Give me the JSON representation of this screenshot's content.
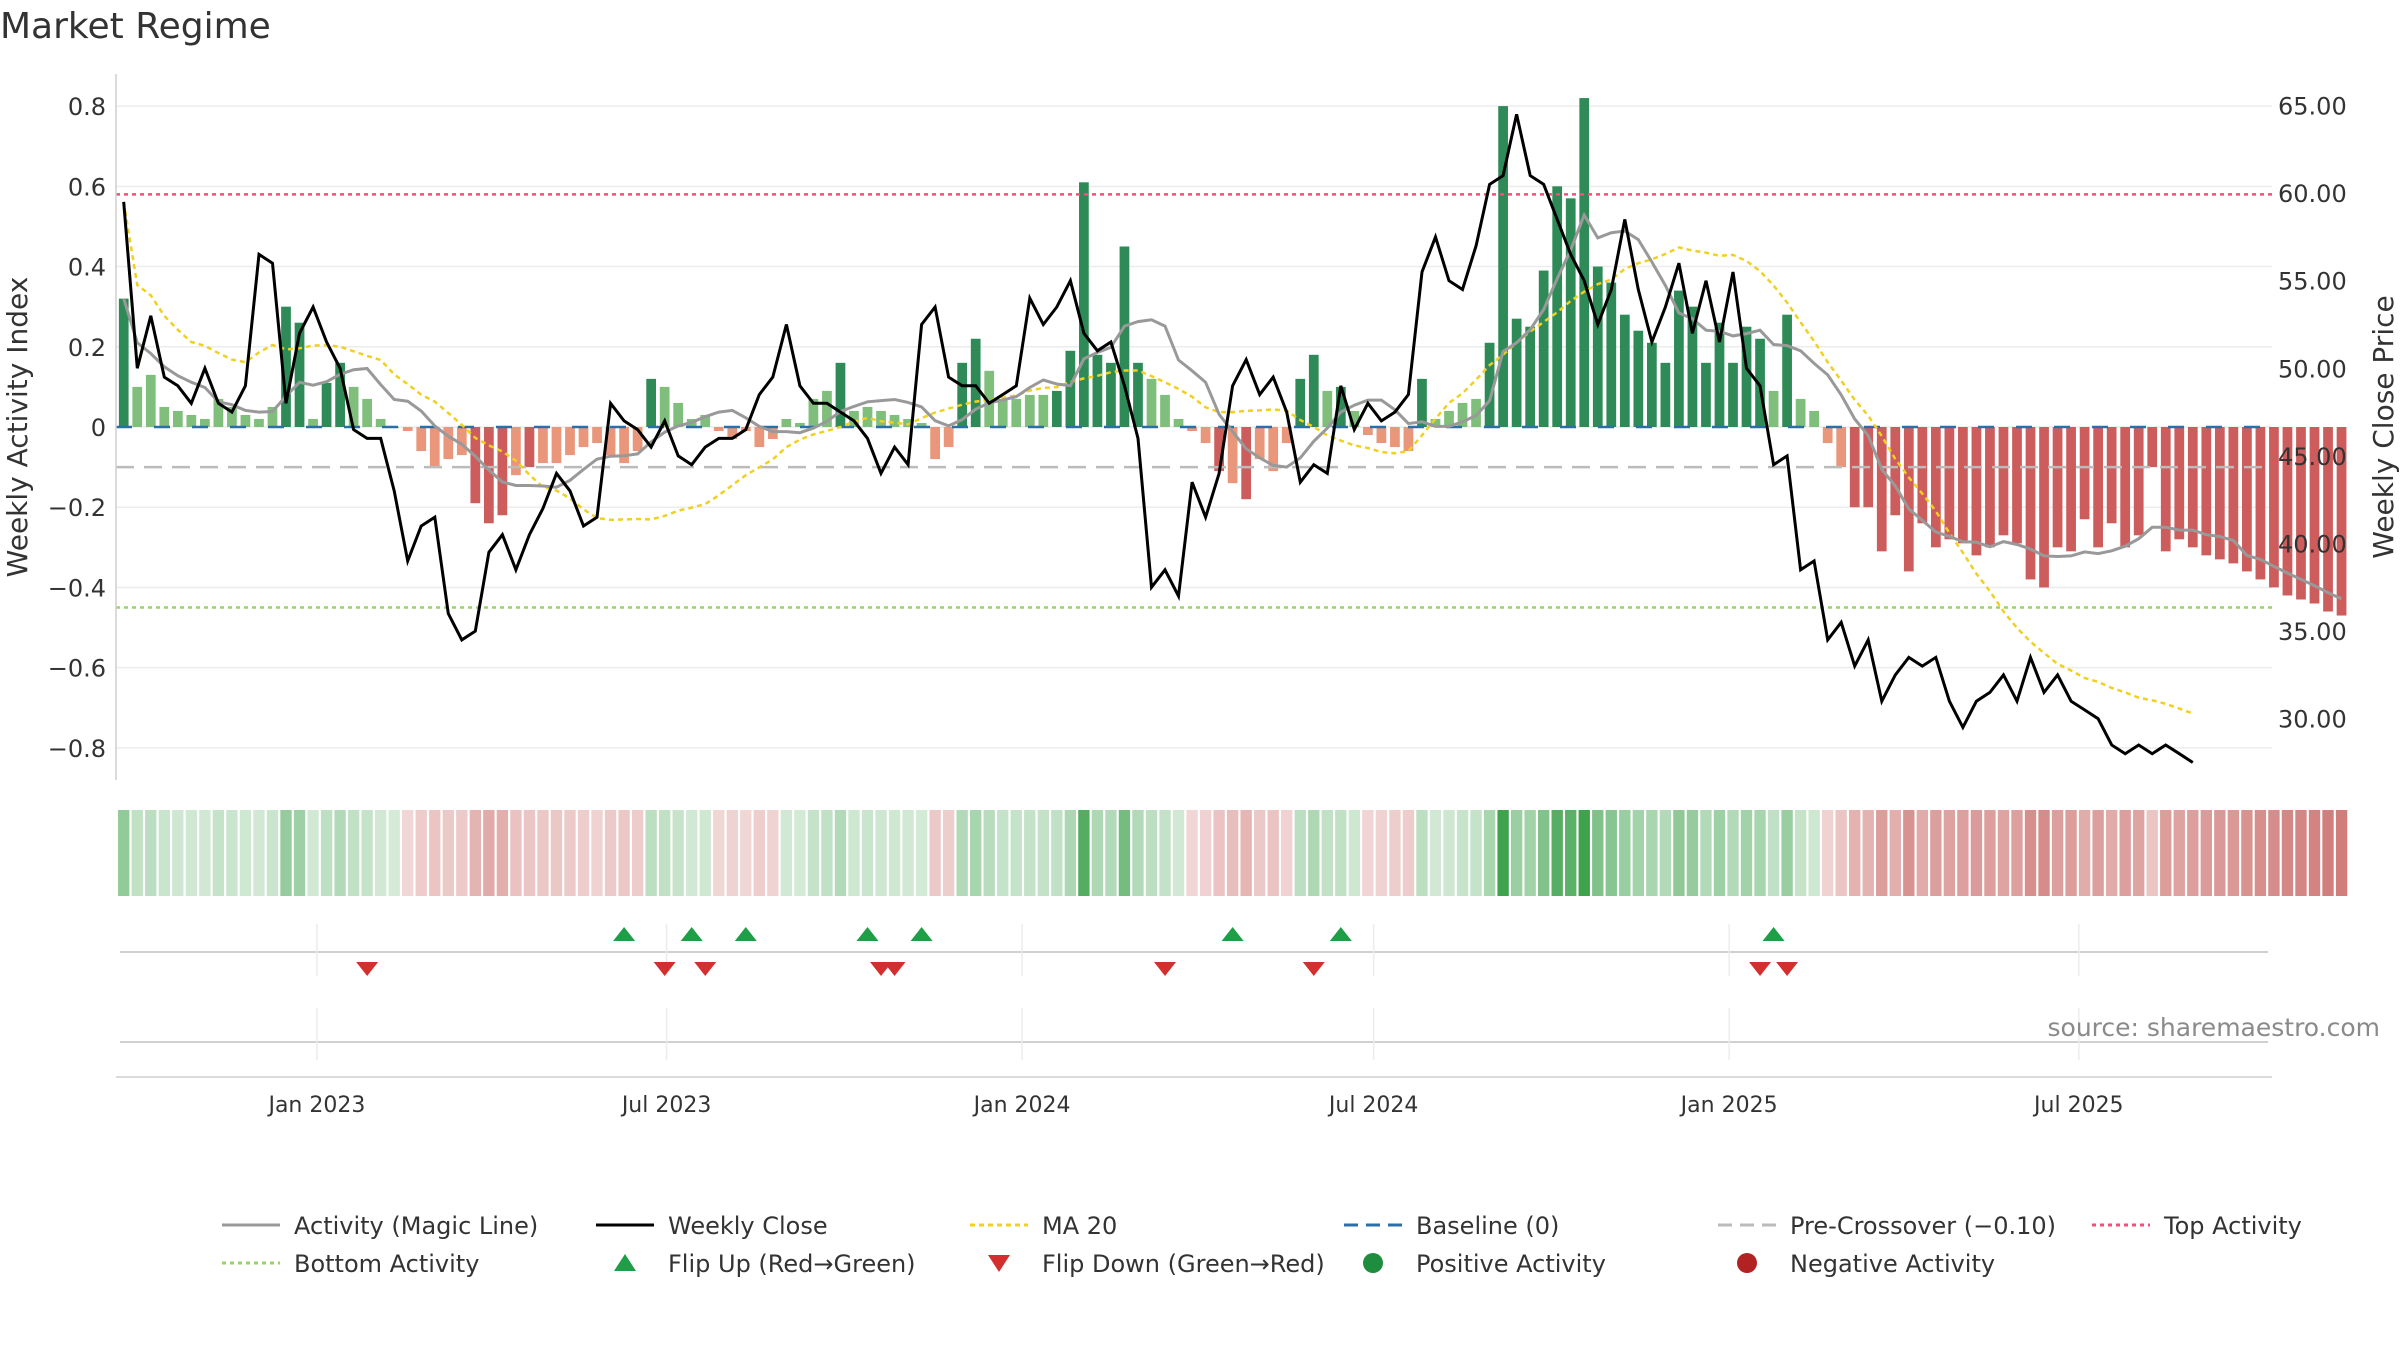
{
  "title": "Market Regime",
  "source": "source: sharemaestro.com",
  "colors": {
    "strong_green": "#2e8b57",
    "light_green": "#7fbf7b",
    "strong_red": "#cd5c5c",
    "light_red": "#e9967a",
    "close": "#000000",
    "magic": "#999999",
    "ma20": "#f0d020",
    "baseline": "#2b6fa8",
    "precross": "#bbbbbb",
    "top_line": "#e8557a",
    "bottom_line": "#9bd36a",
    "flip_up": "#1e9e46",
    "flip_down": "#d32f2f",
    "strip_green": "#3fa34d",
    "strip_red": "#c0504d"
  },
  "chart_data": {
    "type": "bar",
    "title": "Market Regime",
    "ylabel": "Weekly Activity Index",
    "y2label": "Weekly Close Price",
    "ylim": [
      -0.88,
      0.88
    ],
    "y2lim": [
      26.5,
      66.8
    ],
    "xlim": [
      "2022-09-19",
      "2025-10-09"
    ],
    "yticks": [
      "0.8",
      "0.6",
      "0.4",
      "0.2",
      "0",
      "−0.2",
      "−0.4",
      "−0.6",
      "−0.8"
    ],
    "ytick_values": [
      0.8,
      0.6,
      0.4,
      0.2,
      0,
      -0.2,
      -0.4,
      -0.6,
      -0.8
    ],
    "y2ticks": [
      "65.00",
      "60.00",
      "55.00",
      "50.00",
      "45.00",
      "40.00",
      "35.00",
      "30.00"
    ],
    "y2tick_values": [
      65,
      60,
      55,
      50,
      45,
      40,
      35,
      30
    ],
    "xticks": [
      "Jan 2023",
      "Jul 2023",
      "Jan 2024",
      "Jul 2024",
      "Jan 2025",
      "Jul 2025"
    ],
    "xtick_dates": [
      "2023-01-01",
      "2023-07-01",
      "2024-01-01",
      "2024-07-01",
      "2025-01-01",
      "2025-07-01"
    ],
    "reference_lines": {
      "top_activity": 0.58,
      "bottom_activity": -0.45,
      "baseline": 0,
      "pre_crossover": -0.1
    },
    "weeks": {
      "start": "2022-09-23",
      "activity": [
        0.32,
        0.1,
        0.13,
        0.05,
        0.04,
        0.03,
        0.02,
        0.07,
        0.05,
        0.03,
        0.02,
        0.05,
        0.3,
        0.26,
        0.02,
        0.11,
        0.16,
        0.1,
        0.07,
        0.02,
        0.0,
        -0.01,
        -0.06,
        -0.1,
        -0.08,
        -0.07,
        -0.19,
        -0.24,
        -0.22,
        -0.12,
        -0.1,
        -0.09,
        -0.09,
        -0.07,
        -0.05,
        -0.04,
        -0.07,
        -0.09,
        -0.06,
        0.12,
        0.1,
        0.06,
        0.02,
        0.03,
        -0.01,
        -0.03,
        -0.01,
        -0.05,
        -0.03,
        0.02,
        0.01,
        0.07,
        0.09,
        0.16,
        0.04,
        0.05,
        0.04,
        0.03,
        0.02,
        0.01,
        -0.08,
        -0.05,
        0.16,
        0.22,
        0.14,
        0.07,
        0.07,
        0.08,
        0.08,
        0.09,
        0.19,
        0.61,
        0.18,
        0.16,
        0.45,
        0.16,
        0.12,
        0.08,
        0.02,
        -0.01,
        -0.04,
        -0.11,
        -0.14,
        -0.18,
        -0.08,
        -0.11,
        -0.04,
        0.12,
        0.18,
        0.09,
        0.1,
        0.04,
        -0.02,
        -0.04,
        -0.05,
        -0.06,
        0.12,
        0.02,
        0.04,
        0.06,
        0.07,
        0.21,
        0.8,
        0.27,
        0.25,
        0.39,
        0.6,
        0.57,
        0.82,
        0.4,
        0.36,
        0.28,
        0.24,
        0.21,
        0.16,
        0.34,
        0.3,
        0.16,
        0.26,
        0.16,
        0.25,
        0.22,
        0.09,
        0.28,
        0.07,
        0.04,
        -0.04,
        -0.1,
        -0.2,
        -0.2,
        -0.31,
        -0.22,
        -0.36,
        -0.24,
        -0.3,
        -0.28,
        -0.29,
        -0.32,
        -0.3,
        -0.27,
        -0.29,
        -0.38,
        -0.4,
        -0.3,
        -0.31,
        -0.23,
        -0.3,
        -0.24,
        -0.3,
        -0.27,
        -0.1,
        -0.31,
        -0.28,
        -0.3,
        -0.32,
        -0.33,
        -0.34,
        -0.36,
        -0.38,
        -0.4,
        -0.42,
        -0.43,
        -0.44,
        -0.46,
        -0.47
      ],
      "close": [
        59.5,
        50.0,
        53.0,
        49.5,
        49.0,
        48.0,
        50.0,
        48.0,
        47.5,
        49.0,
        56.5,
        56.0,
        48.0,
        52.0,
        53.5,
        51.5,
        50.0,
        46.5,
        46.0,
        46.0,
        43.0,
        39.0,
        41.0,
        41.5,
        36.0,
        34.5,
        35.0,
        39.5,
        40.5,
        38.5,
        40.5,
        42.0,
        44.0,
        43.0,
        41.0,
        41.5,
        48.0,
        47.0,
        46.5,
        45.5,
        47.0,
        45.0,
        44.5,
        45.5,
        46.0,
        46.0,
        46.5,
        48.5,
        49.5,
        52.5,
        49.0,
        48.0,
        48.0,
        47.5,
        47.0,
        46.0,
        44.0,
        45.5,
        44.5,
        52.5,
        53.5,
        49.5,
        49.0,
        49.0,
        48.0,
        48.5,
        49.0,
        54.0,
        52.5,
        53.5,
        55.0,
        52.0,
        51.0,
        51.5,
        49.0,
        46.0,
        37.5,
        38.5,
        37.0,
        43.5,
        41.5,
        44.0,
        49.0,
        50.5,
        48.5,
        49.5,
        47.5,
        43.5,
        44.5,
        44.0,
        49.0,
        46.5,
        48.0,
        47.0,
        47.5,
        48.5,
        55.5,
        57.5,
        55.0,
        54.5,
        57.0,
        60.5,
        61.0,
        64.5,
        61.0,
        60.5,
        58.5,
        56.5,
        55.0,
        52.5,
        54.5,
        58.5,
        54.5,
        51.5,
        53.5,
        56.0,
        52.0,
        55.0,
        51.5,
        55.5,
        50.0,
        49.0,
        44.5,
        45.0,
        38.5,
        39.0,
        34.5,
        35.5,
        33.0,
        34.5,
        31.0,
        32.5,
        33.5,
        33.0,
        33.5,
        31.0,
        29.5,
        31.0,
        31.5,
        32.5,
        31.0,
        33.5,
        31.5,
        32.5,
        31.0,
        30.5,
        30.0,
        28.5,
        28.0,
        28.5,
        28.0,
        28.5,
        28.0,
        27.5
      ]
    },
    "flips": {
      "up": [
        "2023-06-09",
        "2023-07-14",
        "2023-08-11",
        "2023-10-13",
        "2023-11-10",
        "2024-04-19",
        "2024-06-14",
        "2025-01-24"
      ],
      "down": [
        "2023-01-27",
        "2023-06-30",
        "2023-07-21",
        "2023-10-20",
        "2023-10-27",
        "2024-03-15",
        "2024-05-31",
        "2025-01-17",
        "2025-01-31"
      ]
    },
    "series": [
      {
        "name": "Activity (Magic Line)"
      },
      {
        "name": "Weekly Close"
      },
      {
        "name": "MA 20"
      },
      {
        "name": "Baseline (0)"
      },
      {
        "name": "Pre-Crossover (−0.10)"
      },
      {
        "name": "Top Activity"
      },
      {
        "name": "Bottom Activity"
      },
      {
        "name": "Flip Up (Red→Green)"
      },
      {
        "name": "Flip Down (Green→Red)"
      },
      {
        "name": "Positive Activity"
      },
      {
        "name": "Negative Activity"
      }
    ],
    "grid": true,
    "legend_position": "bottom"
  },
  "legend": [
    {
      "label": "Activity (Magic Line)",
      "kind": "line",
      "color": "#999999",
      "dash": "",
      "col": 0,
      "row": 0
    },
    {
      "label": "Weekly Close",
      "kind": "line",
      "color": "#000000",
      "dash": "",
      "col": 1,
      "row": 0
    },
    {
      "label": "MA 20",
      "kind": "line",
      "color": "#f0d020",
      "dash": "5,4",
      "col": 2,
      "row": 0
    },
    {
      "label": "Baseline (0)",
      "kind": "line",
      "color": "#2b6fa8",
      "dash": "14,8",
      "col": 3,
      "row": 0
    },
    {
      "label": "Pre-Crossover (−0.10)",
      "kind": "line",
      "color": "#bbbbbb",
      "dash": "14,8",
      "col": 4,
      "row": 0
    },
    {
      "label": "Top Activity",
      "kind": "line",
      "color": "#e8557a",
      "dash": "4,4",
      "col": 5,
      "row": 0
    },
    {
      "label": "Bottom Activity",
      "kind": "line",
      "color": "#9bd36a",
      "dash": "4,4",
      "col": 0,
      "row": 1
    },
    {
      "label": "Flip Up (Red→Green)",
      "kind": "tri-up",
      "color": "#1e9e46",
      "dash": "",
      "col": 1,
      "row": 1
    },
    {
      "label": "Flip Down (Green→Red)",
      "kind": "tri-down",
      "color": "#d32f2f",
      "dash": "",
      "col": 2,
      "row": 1
    },
    {
      "label": "Positive Activity",
      "kind": "dot",
      "color": "#1e8e3e",
      "dash": "",
      "col": 3,
      "row": 1
    },
    {
      "label": "Negative Activity",
      "kind": "dot",
      "color": "#b22222",
      "dash": "",
      "col": 4,
      "row": 1
    }
  ]
}
